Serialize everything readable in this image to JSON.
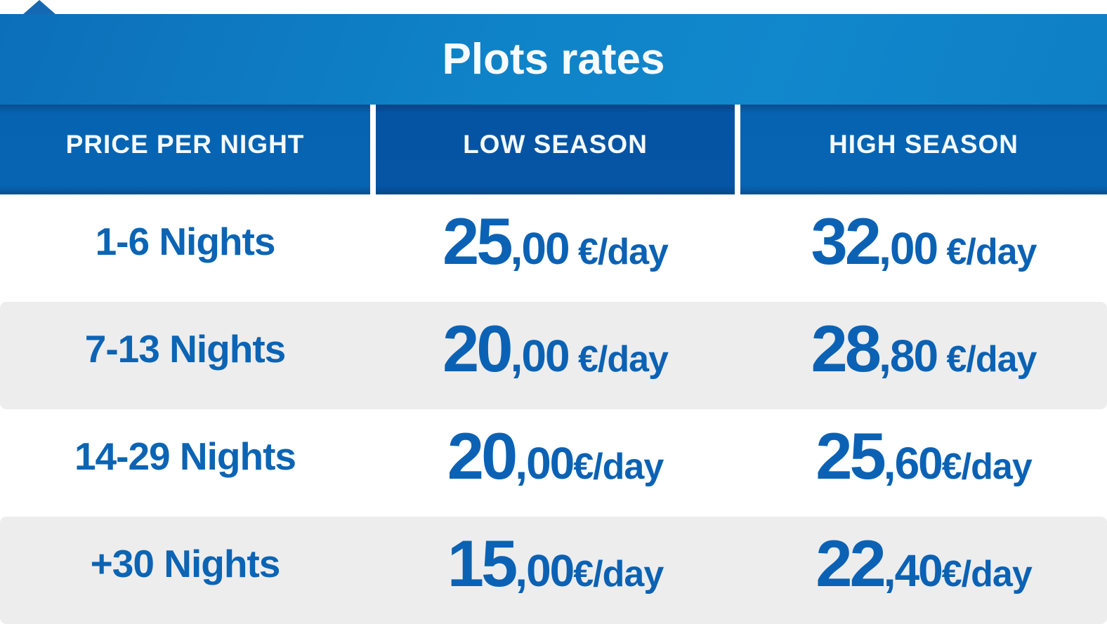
{
  "table": {
    "title": "Plots rates",
    "columns": [
      "PRICE PER NIGHT",
      "LOW SEASON",
      "HIGH SEASON"
    ],
    "rows": [
      {
        "label": "1-6 Nights",
        "low": {
          "num": "25",
          "dec": ",00",
          "unit": " €/day"
        },
        "high": {
          "num": "32",
          "dec": ",00",
          "unit": " €/day"
        }
      },
      {
        "label": "7-13 Nights",
        "low": {
          "num": "20",
          "dec": ",00",
          "unit": " €/day"
        },
        "high": {
          "num": "28",
          "dec": ",80",
          "unit": " €/day"
        }
      },
      {
        "label": "14-29 Nights",
        "low": {
          "num": "20",
          "dec": ",00",
          "unit": "€/day"
        },
        "high": {
          "num": "25",
          "dec": ",60",
          "unit": "€/day"
        }
      },
      {
        "label": "+30 Nights",
        "low": {
          "num": "15",
          "dec": ",00",
          "unit": "€/day"
        },
        "high": {
          "num": "22",
          "dec": ",40",
          "unit": "€/day"
        }
      }
    ],
    "colors": {
      "title_band_blue": "#0f83c8",
      "header_blue": "#0663b2",
      "header_dark_blue": "#0554a3",
      "text_blue": "#0c64b4",
      "row_gray": "#ededee",
      "white": "#ffffff"
    }
  },
  "chart_data": {
    "type": "table",
    "title": "Plots rates",
    "columns": [
      "PRICE PER NIGHT",
      "LOW SEASON",
      "HIGH SEASON"
    ],
    "rows": [
      [
        "1-6 Nights",
        "25,00 €/day",
        "32,00 €/day"
      ],
      [
        "7-13 Nights",
        "20,00 €/day",
        "28,80 €/day"
      ],
      [
        "14-29 Nights",
        "20,00€/day",
        "25,60€/day"
      ],
      [
        "+30 Nights",
        "15,00€/day",
        "22,40€/day"
      ]
    ],
    "units": "EUR per day",
    "low_season_values": [
      25.0,
      20.0,
      20.0,
      15.0
    ],
    "high_season_values": [
      32.0,
      28.8,
      25.6,
      22.4
    ]
  }
}
